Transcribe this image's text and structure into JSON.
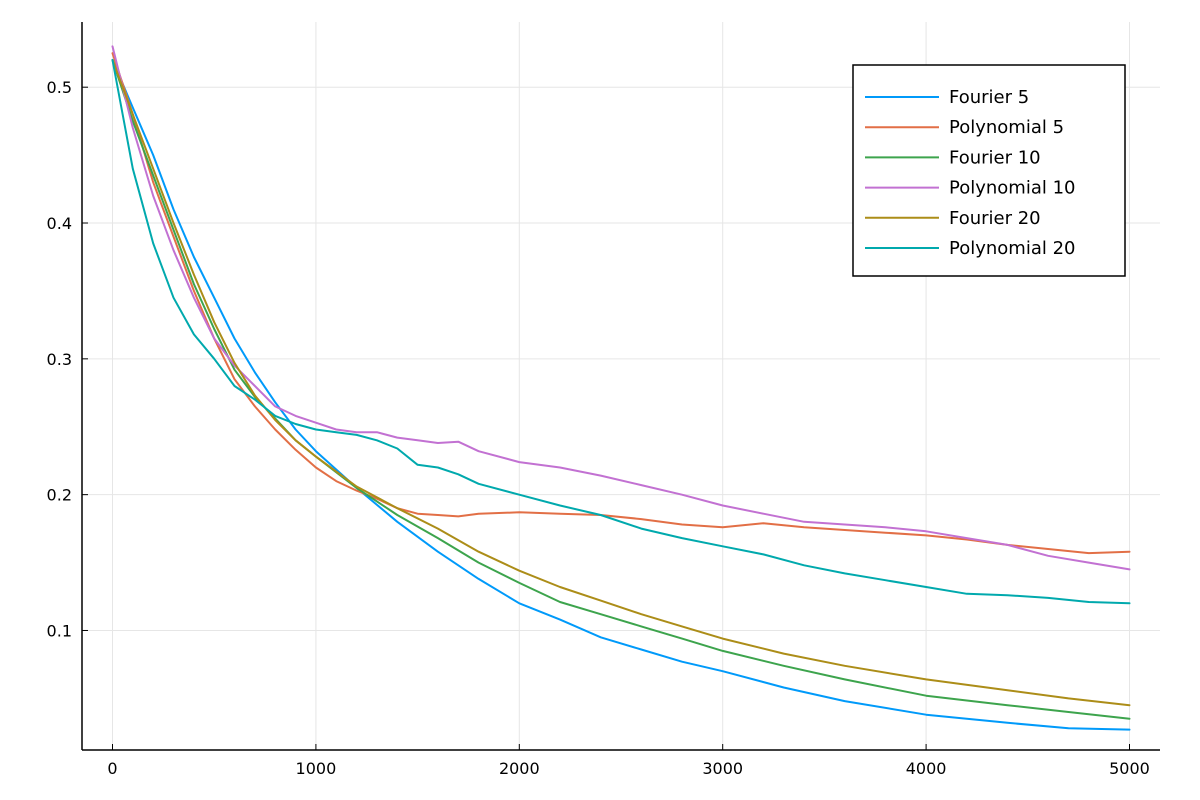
{
  "chart_data": {
    "type": "line",
    "title": "",
    "xlabel": "",
    "ylabel": "",
    "xlim": [
      -150,
      5150
    ],
    "ylim": [
      0.012,
      0.548
    ],
    "xticks": [
      0,
      1000,
      2000,
      3000,
      4000,
      5000
    ],
    "yticks": [
      0.1,
      0.2,
      0.3,
      0.4,
      0.5
    ],
    "xtick_labels": [
      "0",
      "1000",
      "2000",
      "3000",
      "4000",
      "5000"
    ],
    "ytick_labels": [
      "0.1",
      "0.2",
      "0.3",
      "0.4",
      "0.5"
    ],
    "grid": true,
    "legend_position": "top-right",
    "series": [
      {
        "name": "Fourier 5",
        "color": "#009AFA",
        "x": [
          0,
          100,
          200,
          300,
          400,
          500,
          600,
          700,
          800,
          900,
          1000,
          1200,
          1400,
          1600,
          1800,
          2000,
          2200,
          2400,
          2600,
          2800,
          3000,
          3300,
          3600,
          4000,
          4400,
          4700,
          5000
        ],
        "y": [
          0.52,
          0.485,
          0.45,
          0.41,
          0.375,
          0.345,
          0.315,
          0.29,
          0.268,
          0.248,
          0.232,
          0.205,
          0.18,
          0.158,
          0.138,
          0.12,
          0.108,
          0.095,
          0.086,
          0.077,
          0.07,
          0.058,
          0.048,
          0.038,
          0.032,
          0.028,
          0.027
        ]
      },
      {
        "name": "Polynomial 5",
        "color": "#E26F46",
        "x": [
          0,
          100,
          200,
          300,
          400,
          500,
          600,
          700,
          800,
          900,
          1000,
          1100,
          1200,
          1300,
          1400,
          1500,
          1600,
          1700,
          1800,
          2000,
          2200,
          2400,
          2600,
          2800,
          3000,
          3200,
          3400,
          3600,
          3800,
          4000,
          4200,
          4400,
          4600,
          4800,
          5000
        ],
        "y": [
          0.525,
          0.48,
          0.43,
          0.39,
          0.35,
          0.315,
          0.285,
          0.265,
          0.248,
          0.233,
          0.22,
          0.21,
          0.203,
          0.197,
          0.19,
          0.186,
          0.185,
          0.184,
          0.186,
          0.187,
          0.186,
          0.185,
          0.182,
          0.178,
          0.176,
          0.179,
          0.176,
          0.174,
          0.172,
          0.17,
          0.167,
          0.163,
          0.16,
          0.157,
          0.158
        ]
      },
      {
        "name": "Fourier 10",
        "color": "#3DA44D",
        "x": [
          0,
          100,
          200,
          300,
          400,
          500,
          600,
          700,
          800,
          900,
          1000,
          1200,
          1400,
          1600,
          1800,
          2000,
          2200,
          2400,
          2600,
          2800,
          3000,
          3300,
          3600,
          4000,
          4400,
          4700,
          5000
        ],
        "y": [
          0.52,
          0.475,
          0.435,
          0.395,
          0.355,
          0.322,
          0.292,
          0.272,
          0.256,
          0.24,
          0.228,
          0.205,
          0.185,
          0.168,
          0.15,
          0.135,
          0.121,
          0.112,
          0.103,
          0.094,
          0.085,
          0.074,
          0.064,
          0.052,
          0.045,
          0.04,
          0.035
        ]
      },
      {
        "name": "Polynomial 10",
        "color": "#C271D2",
        "x": [
          0,
          100,
          200,
          300,
          400,
          500,
          600,
          700,
          800,
          900,
          1000,
          1100,
          1200,
          1300,
          1400,
          1500,
          1600,
          1700,
          1800,
          2000,
          2200,
          2400,
          2600,
          2800,
          3000,
          3200,
          3400,
          3600,
          3800,
          4000,
          4200,
          4400,
          4600,
          4800,
          5000
        ],
        "y": [
          0.53,
          0.47,
          0.42,
          0.38,
          0.345,
          0.315,
          0.295,
          0.28,
          0.265,
          0.258,
          0.253,
          0.248,
          0.246,
          0.246,
          0.242,
          0.24,
          0.238,
          0.239,
          0.232,
          0.224,
          0.22,
          0.214,
          0.207,
          0.2,
          0.192,
          0.186,
          0.18,
          0.178,
          0.176,
          0.173,
          0.168,
          0.163,
          0.155,
          0.15,
          0.145
        ]
      },
      {
        "name": "Fourier 20",
        "color": "#AC8D18",
        "x": [
          0,
          100,
          200,
          300,
          400,
          500,
          600,
          700,
          800,
          900,
          1000,
          1200,
          1400,
          1600,
          1800,
          2000,
          2200,
          2400,
          2600,
          2800,
          3000,
          3300,
          3600,
          4000,
          4400,
          4700,
          5000
        ],
        "y": [
          0.52,
          0.48,
          0.44,
          0.4,
          0.362,
          0.327,
          0.297,
          0.273,
          0.255,
          0.24,
          0.228,
          0.206,
          0.19,
          0.175,
          0.158,
          0.144,
          0.132,
          0.122,
          0.112,
          0.103,
          0.094,
          0.083,
          0.074,
          0.064,
          0.056,
          0.05,
          0.045
        ]
      },
      {
        "name": "Polynomial 20",
        "color": "#00A9AD",
        "x": [
          0,
          100,
          200,
          300,
          400,
          500,
          600,
          700,
          800,
          900,
          1000,
          1100,
          1200,
          1300,
          1400,
          1500,
          1600,
          1700,
          1800,
          2000,
          2200,
          2400,
          2600,
          2800,
          3000,
          3200,
          3400,
          3600,
          3800,
          4000,
          4200,
          4400,
          4600,
          4800,
          5000
        ],
        "y": [
          0.52,
          0.44,
          0.385,
          0.345,
          0.318,
          0.3,
          0.28,
          0.27,
          0.258,
          0.252,
          0.248,
          0.246,
          0.244,
          0.24,
          0.234,
          0.222,
          0.22,
          0.215,
          0.208,
          0.2,
          0.192,
          0.185,
          0.175,
          0.168,
          0.162,
          0.156,
          0.148,
          0.142,
          0.137,
          0.132,
          0.127,
          0.126,
          0.124,
          0.121,
          0.12
        ]
      }
    ]
  }
}
